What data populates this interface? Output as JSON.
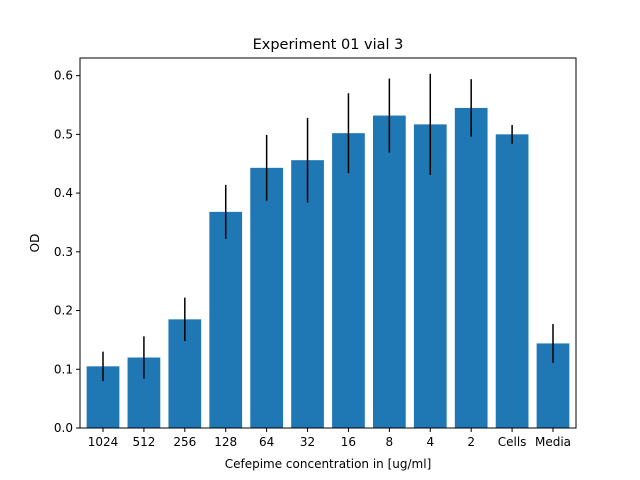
{
  "colors": {
    "bar": "#1f77b4",
    "errorbar": "#000000",
    "axis": "#000000",
    "background": "#ffffff"
  },
  "chart_data": {
    "type": "bar",
    "title": "Experiment 01 vial 3",
    "xlabel": "Cefepime concentration in [ug/ml]",
    "ylabel": "OD",
    "categories": [
      "1024",
      "512",
      "256",
      "128",
      "64",
      "32",
      "16",
      "8",
      "4",
      "2",
      "Cells",
      "Media"
    ],
    "values": [
      0.105,
      0.12,
      0.185,
      0.368,
      0.443,
      0.456,
      0.502,
      0.532,
      0.517,
      0.545,
      0.5,
      0.144
    ],
    "errors": [
      0.025,
      0.036,
      0.037,
      0.046,
      0.056,
      0.072,
      0.068,
      0.063,
      0.086,
      0.049,
      0.016,
      0.033
    ],
    "ylim": [
      0,
      0.63
    ],
    "yticks": [
      0.0,
      0.1,
      0.2,
      0.3,
      0.4,
      0.5,
      0.6
    ],
    "ytick_labels": [
      "0.0",
      "0.1",
      "0.2",
      "0.3",
      "0.4",
      "0.5",
      "0.6"
    ],
    "grid": false,
    "legend": "none"
  }
}
